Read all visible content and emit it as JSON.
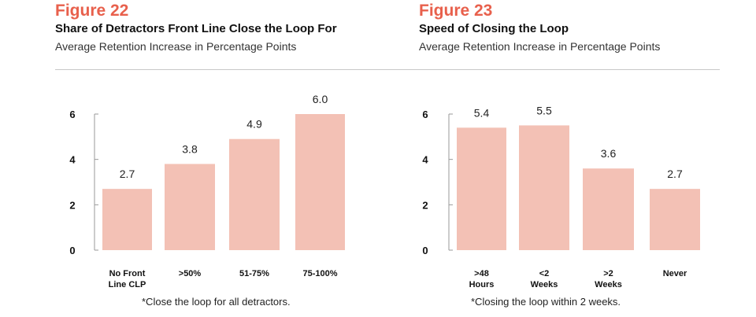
{
  "colors": {
    "accent": "#e8604c",
    "bar": "#f3c1b5",
    "axis": "#999999",
    "text": "#222222"
  },
  "chart_data": [
    {
      "type": "bar",
      "figure_label": "Figure 22",
      "title": "Share of Detractors Front Line Close the Loop For",
      "subtitle": "Average Retention Increase in Percentage Points",
      "categories": [
        "No Front\nLine CLP",
        ">50%",
        "51-75%",
        "75-100%"
      ],
      "values": [
        2.7,
        3.8,
        4.9,
        6.0
      ],
      "value_labels": [
        "2.7",
        "3.8",
        "4.9",
        "6.0"
      ],
      "yticks": [
        0,
        2,
        4,
        6
      ],
      "ylim": [
        0,
        6
      ],
      "xlabel": "",
      "ylabel": "",
      "grid": false,
      "note": "*Close the loop for all detractors."
    },
    {
      "type": "bar",
      "figure_label": "Figure 23",
      "title": "Speed of Closing the Loop",
      "subtitle": "Average Retention Increase in Percentage Points",
      "categories": [
        ">48\nHours",
        "<2\nWeeks",
        ">2\nWeeks",
        "Never"
      ],
      "values": [
        5.4,
        5.5,
        3.6,
        2.7
      ],
      "value_labels": [
        "5.4",
        "5.5",
        "3.6",
        "2.7"
      ],
      "yticks": [
        0,
        2,
        4,
        6
      ],
      "ylim": [
        0,
        6
      ],
      "xlabel": "",
      "ylabel": "",
      "grid": false,
      "note": "*Closing the loop within 2 weeks."
    }
  ]
}
